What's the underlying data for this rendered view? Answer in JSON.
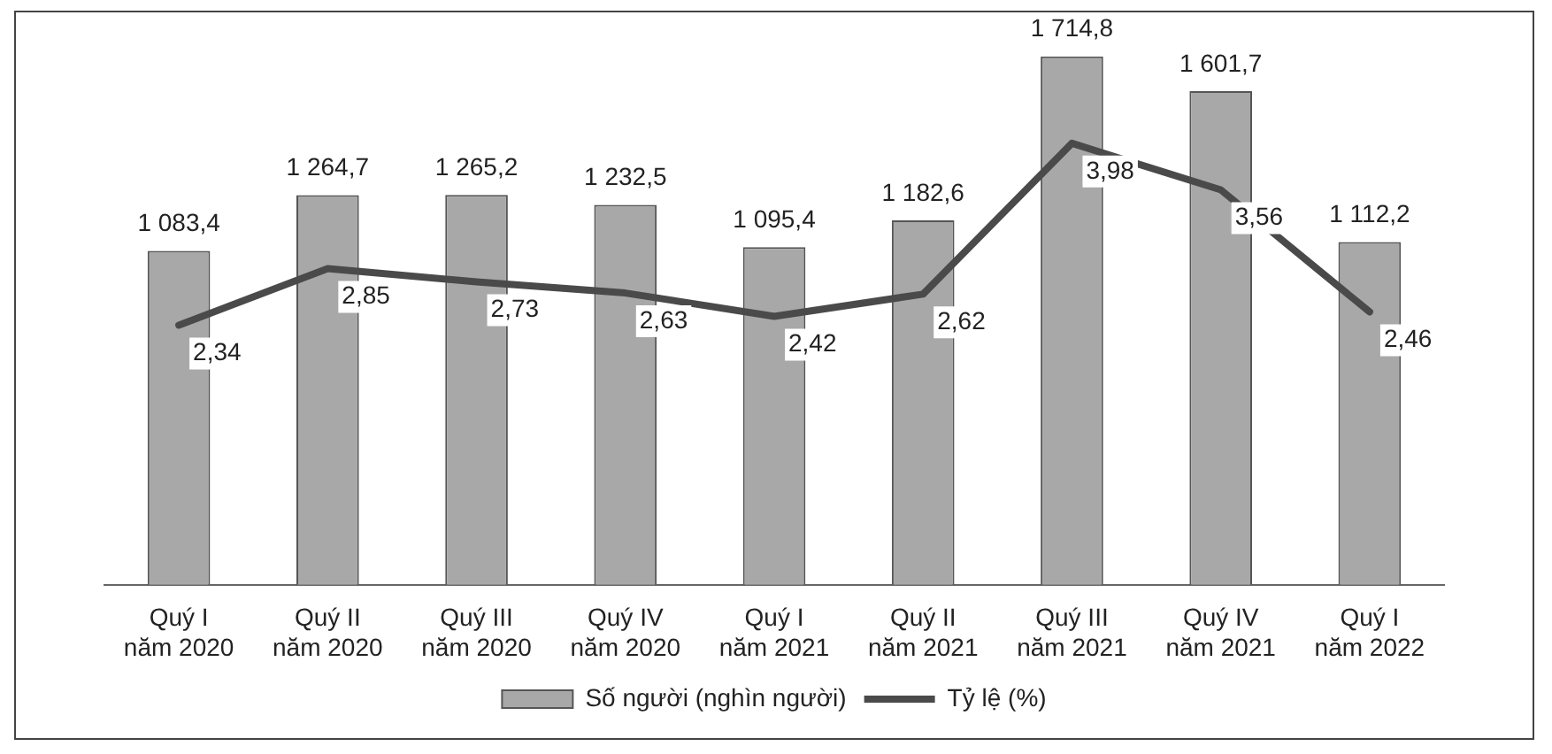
{
  "chart_data": {
    "type": "bar",
    "categories": [
      "Quý I\nnăm 2020",
      "Quý II\nnăm 2020",
      "Quý III\nnăm 2020",
      "Quý IV\nnăm 2020",
      "Quý I\nnăm 2021",
      "Quý II\nnăm 2021",
      "Quý III\nnăm 2021",
      "Quý IV\nnăm 2021",
      "Quý I\nnăm 2022"
    ],
    "series": [
      {
        "name": "Số người (nghìn người)",
        "color": "#a8a8a8",
        "values": [
          1083.4,
          1264.7,
          1265.2,
          1232.5,
          1095.4,
          1182.6,
          1714.8,
          1601.7,
          1112.2
        ],
        "value_labels": [
          "1 083,4",
          "1 264,7",
          "1 265,2",
          "1 232,5",
          "1 095,4",
          "1 182,6",
          "1 714,8",
          "1 601,7",
          "1 112,2"
        ]
      },
      {
        "name": "Tỷ lệ (%)",
        "type": "line",
        "axis": "y2",
        "color": "#4a4a4a",
        "values": [
          2.34,
          2.85,
          2.73,
          2.63,
          2.42,
          2.62,
          3.98,
          3.56,
          2.46
        ],
        "value_labels": [
          "2,34",
          "2,85",
          "2,73",
          "2,63",
          "2,42",
          "2,62",
          "3,98",
          "3,56",
          "2,46"
        ]
      }
    ],
    "legend": "bottom",
    "grid": false,
    "marker": "none",
    "tick_labels": "x"
  }
}
